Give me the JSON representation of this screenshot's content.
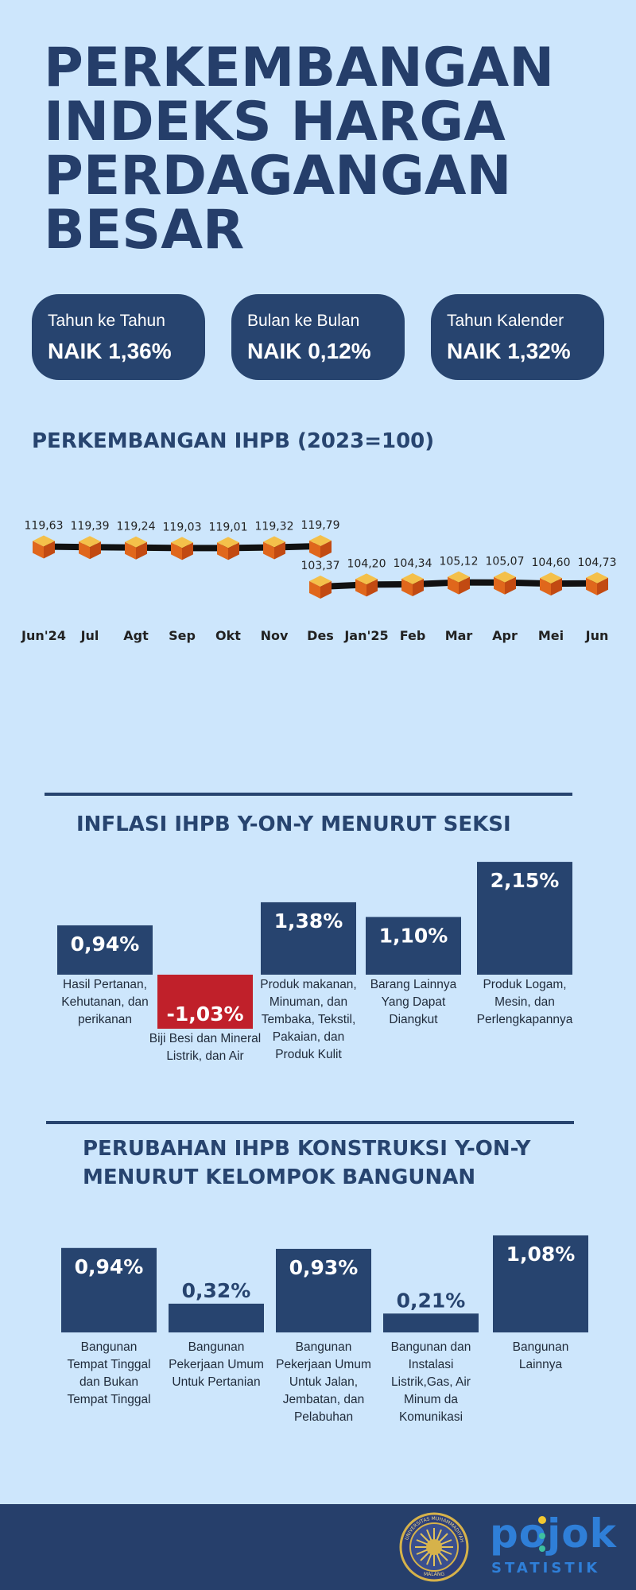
{
  "title": {
    "lines": [
      "PERKEMBANGAN",
      "INDEKS HARGA",
      "PERDAGANGAN",
      "BESAR"
    ]
  },
  "stats": [
    {
      "label": "Tahun ke Tahun",
      "value": "NAIK 1,36%"
    },
    {
      "label": "Bulan ke Bulan",
      "value": "NAIK 0,12%"
    },
    {
      "label": "Tahun Kalender",
      "value": "NAIK 1,32%"
    }
  ],
  "colors": {
    "background": "#cde6fc",
    "navy": "#27446f",
    "negative": "#c0202a",
    "marker": "#e8a33a",
    "footer": "#263f6b"
  },
  "chart_data": [
    {
      "type": "line",
      "title": "PERKEMBANGAN IHPB (2023=100)",
      "categories": [
        "Jun'24",
        "Jul",
        "Agt",
        "Sep",
        "Okt",
        "Nov",
        "Des",
        "Jan'25",
        "Feb",
        "Mar",
        "Apr",
        "Mei",
        "Jun"
      ],
      "series": [
        {
          "values": [
            119.63,
            119.39,
            119.24,
            119.03,
            119.01,
            119.32,
            119.79,
            null,
            null,
            null,
            null,
            null,
            null
          ]
        },
        {
          "values": [
            null,
            null,
            null,
            null,
            null,
            null,
            103.37,
            104.2,
            104.34,
            105.12,
            105.07,
            104.6,
            104.73
          ]
        }
      ],
      "data_labels": [
        "119,63",
        "119,39",
        "119,24",
        "119,03",
        "119,01",
        "119,32",
        "119,79",
        "103,37",
        "104,20",
        "104,34",
        "105,12",
        "105,07",
        "104,60",
        "104,73"
      ],
      "marker": "cube",
      "grid": false
    },
    {
      "type": "bar",
      "title": "INFLASI IHPB Y-ON-Y MENURUT SEKSI",
      "categories": [
        "Hasil Pertanan, Kehutanan, dan perikanan",
        "Biji Besi dan Mineral Listrik, dan Air",
        "Produk makanan, Minuman, dan Tembaka, Tekstil, Pakaian, dan Produk Kulit",
        "Barang Lainnya Yang Dapat Diangkut",
        "Produk Logam, Mesin, dan Perlengkapannya"
      ],
      "category_lines": [
        [
          "Hasil Pertanan,",
          "Kehutanan, dan",
          "perikanan"
        ],
        [
          "Biji Besi dan Mineral",
          "Listrik, dan Air"
        ],
        [
          "Produk makanan,",
          "Minuman, dan",
          "Tembaka, Tekstil,",
          "Pakaian, dan",
          "Produk Kulit"
        ],
        [
          "Barang Lainnya",
          "Yang Dapat",
          "Diangkut"
        ],
        [
          "Produk Logam,",
          "Mesin, dan",
          "Perlengkapannya"
        ]
      ],
      "values": [
        0.94,
        -1.03,
        1.38,
        1.1,
        2.15
      ],
      "value_labels": [
        "0,94%",
        "-1,03%",
        "1,38%",
        "1,10%",
        "2,15%"
      ],
      "ylim": [
        -1.1,
        2.2
      ]
    },
    {
      "type": "bar",
      "title": "PERUBAHAN IHPB KONSTRUKSI Y-ON-Y MENURUT KELOMPOK BANGUNAN",
      "title_lines": [
        "PERUBAHAN IHPB KONSTRUKSI Y-ON-Y",
        "MENURUT KELOMPOK BANGUNAN"
      ],
      "categories": [
        "Bangunan Tempat Tinggal dan Bukan Tempat Tinggal",
        "Bangunan Pekerjaan Umum Untuk Pertanian",
        "Bangunan Pekerjaan Umum Untuk Jalan, Jembatan, dan Pelabuhan",
        "Bangunan dan Instalasi Listrik,Gas, Air Minum da Komunikasi",
        "Bangunan Lainnya"
      ],
      "category_lines": [
        [
          "Bangunan",
          "Tempat Tinggal",
          "dan Bukan",
          "Tempat Tinggal"
        ],
        [
          "Bangunan",
          "Pekerjaan Umum",
          "Untuk Pertanian"
        ],
        [
          "Bangunan",
          "Pekerjaan Umum",
          "Untuk Jalan,",
          "Jembatan, dan",
          "Pelabuhan"
        ],
        [
          "Bangunan dan",
          "Instalasi",
          "Listrik,Gas, Air",
          "Minum da",
          "Komunikasi"
        ],
        [
          "Bangunan",
          "Lainnya"
        ]
      ],
      "values": [
        0.94,
        0.32,
        0.93,
        0.21,
        1.08
      ],
      "value_labels": [
        "0,94%",
        "0,32%",
        "0,93%",
        "0,21%",
        "1,08%"
      ],
      "ylim": [
        0,
        1.1
      ]
    }
  ],
  "footer": {
    "seal_ring_text": "UNIVERSITAS MUHAMMADIYAH",
    "seal_city": "MALANG",
    "brand": "pojok",
    "brand_sub": "STATISTIK"
  }
}
